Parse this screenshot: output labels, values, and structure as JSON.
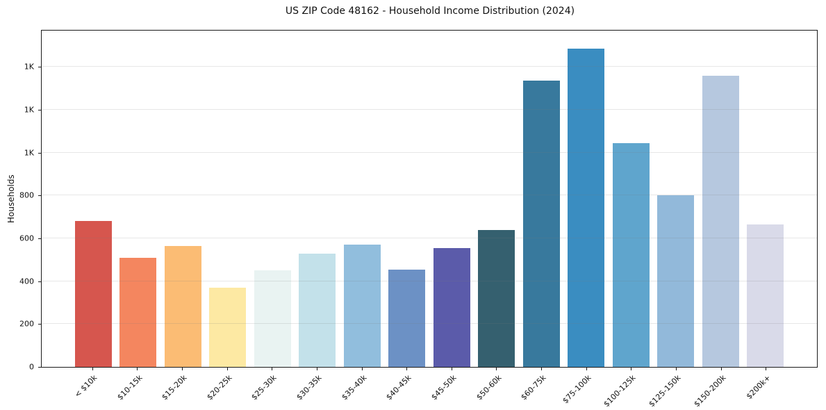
{
  "title": "US ZIP Code 48162 - Household Income Distribution (2024)",
  "chart_data": {
    "type": "bar",
    "title": "US ZIP Code 48162 - Household Income Distribution (2024)",
    "xlabel": "",
    "ylabel": "Households",
    "categories": [
      "< $10k",
      "$10-15k",
      "$15-20k",
      "$20-25k",
      "$25-30k",
      "$30-35k",
      "$35-40k",
      "$40-45k",
      "$45-50k",
      "$50-60k",
      "$60-75k",
      "$75-100k",
      "$100-125k",
      "$125-150k",
      "$150-200k",
      "$200k+"
    ],
    "values": [
      680,
      510,
      565,
      370,
      450,
      530,
      570,
      455,
      555,
      640,
      1335,
      1485,
      1045,
      800,
      1360,
      665
    ],
    "bar_colors": [
      "#d6564e",
      "#f4865f",
      "#fbbc74",
      "#fde9a3",
      "#e9f3f2",
      "#c3e1ea",
      "#91bedd",
      "#6c91c5",
      "#5b5baa",
      "#35606f",
      "#38799d",
      "#3a8dc1",
      "#5fa5cd",
      "#92b9da",
      "#b6c8df",
      "#d9dae9"
    ],
    "ylim": [
      0,
      1570
    ],
    "yticks": [
      {
        "value": 0,
        "label": "0"
      },
      {
        "value": 200,
        "label": "200"
      },
      {
        "value": 400,
        "label": "400"
      },
      {
        "value": 600,
        "label": "600"
      },
      {
        "value": 800,
        "label": "800"
      },
      {
        "value": 1000,
        "label": "1K"
      },
      {
        "value": 1200,
        "label": "1K"
      },
      {
        "value": 1400,
        "label": "1K"
      }
    ],
    "grid": "horizontal",
    "legend": "none",
    "spine_color": "#1a1a1a",
    "background_color": "#ffffff"
  }
}
